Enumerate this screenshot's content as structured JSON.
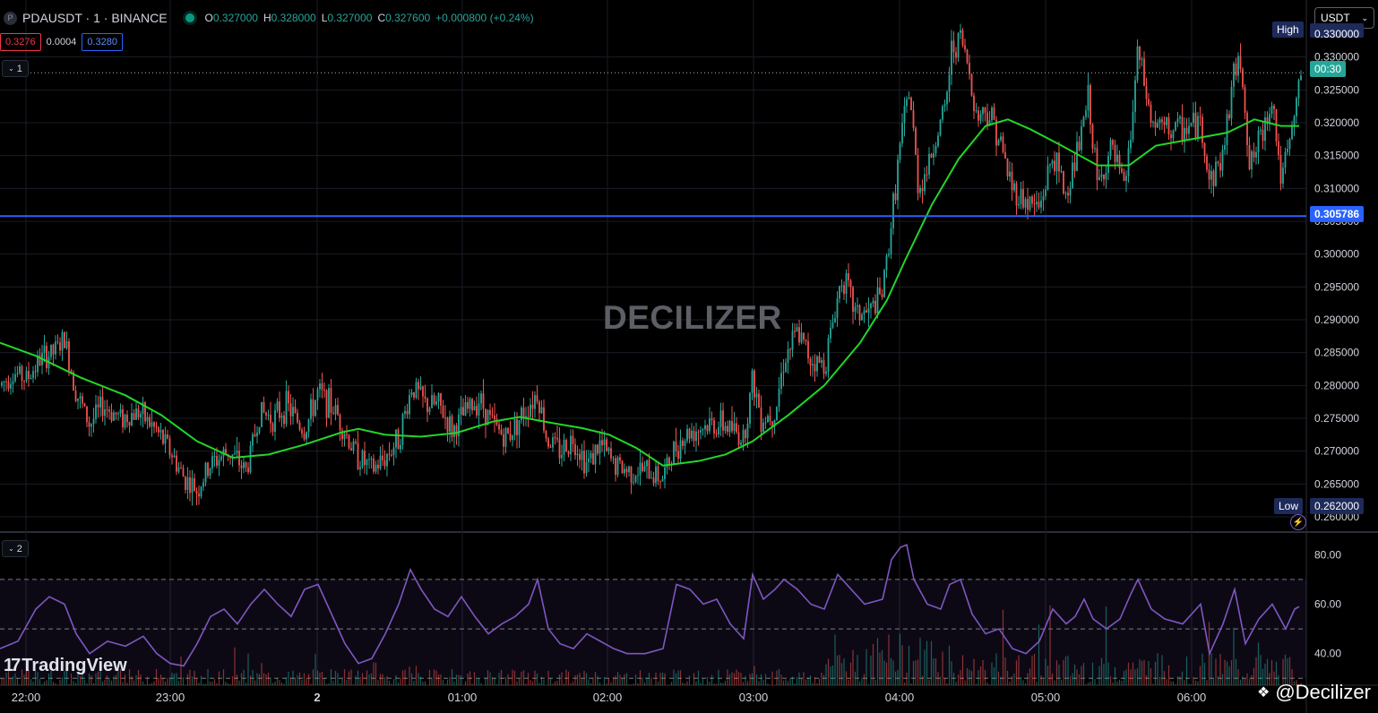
{
  "header": {
    "symbol_logo": "P",
    "symbol_line": "PDAUSDT · 1 · BINANCE",
    "open_label": "O",
    "open": "0.327000",
    "high_label": "H",
    "high": "0.328000",
    "low_label": "L",
    "low": "0.327000",
    "close_label": "C",
    "close": "0.327600",
    "change": "+0.000800 (+0.24%)"
  },
  "bid_ask": {
    "bid": "0.3276",
    "spread": "0.0004",
    "ask": "0.3280"
  },
  "currency_select": "USDT",
  "pane1_tag": "1",
  "pane2_tag": "2",
  "watermark": "DECILIZER",
  "tradingview_logo_text": "TradingView",
  "credit": "@Decilizer",
  "price_tags": {
    "high_label": "High",
    "low_label": "Low",
    "low_value": "0.262000",
    "countdown": "00:30",
    "hline_value": "0.305786",
    "high_cut_value": "0.330000"
  },
  "colors": {
    "up": "#26a69a",
    "down": "#ef5350",
    "ma": "#22d628",
    "rsi": "#7e57c2",
    "hline": "#2962ff",
    "background": "#000000"
  },
  "chart_data": [
    {
      "type": "candlestick",
      "title": "PDAUSDT · 1 · BINANCE",
      "y_ticks": [
        0.26,
        0.265,
        0.27,
        0.275,
        0.28,
        0.285,
        0.29,
        0.295,
        0.3,
        0.305,
        0.31,
        0.315,
        0.32,
        0.325,
        0.33
      ],
      "y_tick_labels": [
        "0.260000",
        "0.265000",
        "0.270000",
        "0.275000",
        "0.280000",
        "0.285000",
        "0.290000",
        "0.295000",
        "0.300000",
        "0.305000",
        "0.310000",
        "0.315000",
        "0.320000",
        "0.325000",
        "0.330000"
      ],
      "x_tick_labels": [
        "22:00",
        "23:00",
        "2",
        "01:00",
        "02:00",
        "03:00",
        "04:00",
        "05:00",
        "06:00"
      ],
      "ylim": [
        0.2585,
        0.3335
      ],
      "high": 0.3325,
      "low": 0.262,
      "last": 0.3276,
      "horizontal_line": 0.305786,
      "price_path": [
        [
          0,
          0.28
        ],
        [
          15,
          0.282
        ],
        [
          30,
          0.281
        ],
        [
          45,
          0.284
        ],
        [
          60,
          0.285
        ],
        [
          72,
          0.287
        ],
        [
          85,
          0.279
        ],
        [
          100,
          0.274
        ],
        [
          115,
          0.277
        ],
        [
          135,
          0.275
        ],
        [
          155,
          0.276
        ],
        [
          175,
          0.273
        ],
        [
          190,
          0.27
        ],
        [
          205,
          0.266
        ],
        [
          220,
          0.264
        ],
        [
          235,
          0.268
        ],
        [
          255,
          0.27
        ],
        [
          275,
          0.267
        ],
        [
          290,
          0.276
        ],
        [
          305,
          0.275
        ],
        [
          320,
          0.277
        ],
        [
          340,
          0.273
        ],
        [
          355,
          0.279
        ],
        [
          375,
          0.276
        ],
        [
          395,
          0.27
        ],
        [
          415,
          0.267
        ],
        [
          430,
          0.269
        ],
        [
          445,
          0.272
        ],
        [
          460,
          0.28
        ],
        [
          475,
          0.277
        ],
        [
          490,
          0.277
        ],
        [
          505,
          0.273
        ],
        [
          520,
          0.276
        ],
        [
          535,
          0.278
        ],
        [
          550,
          0.274
        ],
        [
          565,
          0.272
        ],
        [
          580,
          0.275
        ],
        [
          600,
          0.279
        ],
        [
          610,
          0.272
        ],
        [
          625,
          0.27
        ],
        [
          640,
          0.272
        ],
        [
          655,
          0.268
        ],
        [
          670,
          0.271
        ],
        [
          685,
          0.268
        ],
        [
          700,
          0.267
        ],
        [
          720,
          0.267
        ],
        [
          740,
          0.266
        ],
        [
          755,
          0.271
        ],
        [
          770,
          0.273
        ],
        [
          790,
          0.274
        ],
        [
          810,
          0.274
        ],
        [
          830,
          0.272
        ],
        [
          840,
          0.281
        ],
        [
          850,
          0.275
        ],
        [
          865,
          0.276
        ],
        [
          875,
          0.284
        ],
        [
          890,
          0.288
        ],
        [
          905,
          0.284
        ],
        [
          920,
          0.283
        ],
        [
          930,
          0.29
        ],
        [
          940,
          0.297
        ],
        [
          955,
          0.291
        ],
        [
          970,
          0.291
        ],
        [
          985,
          0.294
        ],
        [
          995,
          0.305
        ],
        [
          1005,
          0.317
        ],
        [
          1015,
          0.325
        ],
        [
          1025,
          0.31
        ],
        [
          1035,
          0.313
        ],
        [
          1045,
          0.318
        ],
        [
          1055,
          0.322
        ],
        [
          1062,
          0.331
        ],
        [
          1072,
          0.333
        ],
        [
          1080,
          0.329
        ],
        [
          1090,
          0.321
        ],
        [
          1100,
          0.322
        ],
        [
          1110,
          0.32
        ],
        [
          1120,
          0.315
        ],
        [
          1130,
          0.31
        ],
        [
          1145,
          0.308
        ],
        [
          1160,
          0.307
        ],
        [
          1175,
          0.315
        ],
        [
          1190,
          0.309
        ],
        [
          1205,
          0.317
        ],
        [
          1215,
          0.324
        ],
        [
          1225,
          0.31
        ],
        [
          1240,
          0.316
        ],
        [
          1255,
          0.31
        ],
        [
          1262,
          0.318
        ],
        [
          1270,
          0.331
        ],
        [
          1285,
          0.32
        ],
        [
          1300,
          0.319
        ],
        [
          1320,
          0.319
        ],
        [
          1340,
          0.32
        ],
        [
          1350,
          0.311
        ],
        [
          1365,
          0.315
        ],
        [
          1375,
          0.326
        ],
        [
          1385,
          0.33
        ],
        [
          1395,
          0.313
        ],
        [
          1410,
          0.319
        ],
        [
          1420,
          0.324
        ],
        [
          1430,
          0.311
        ],
        [
          1440,
          0.317
        ],
        [
          1452,
          0.3276
        ]
      ],
      "moving_average_path": [
        [
          0,
          0.2865
        ],
        [
          40,
          0.2845
        ],
        [
          90,
          0.2812
        ],
        [
          140,
          0.2785
        ],
        [
          180,
          0.2755
        ],
        [
          220,
          0.2715
        ],
        [
          260,
          0.269
        ],
        [
          300,
          0.2695
        ],
        [
          340,
          0.271
        ],
        [
          380,
          0.2728
        ],
        [
          400,
          0.2734
        ],
        [
          430,
          0.2725
        ],
        [
          470,
          0.2722
        ],
        [
          510,
          0.2728
        ],
        [
          550,
          0.2745
        ],
        [
          580,
          0.2752
        ],
        [
          620,
          0.2742
        ],
        [
          650,
          0.2735
        ],
        [
          680,
          0.2725
        ],
        [
          710,
          0.2705
        ],
        [
          740,
          0.2678
        ],
        [
          780,
          0.2685
        ],
        [
          810,
          0.2695
        ],
        [
          840,
          0.2715
        ],
        [
          880,
          0.2755
        ],
        [
          920,
          0.28
        ],
        [
          960,
          0.2865
        ],
        [
          990,
          0.293
        ],
        [
          1010,
          0.299
        ],
        [
          1040,
          0.3075
        ],
        [
          1070,
          0.3145
        ],
        [
          1100,
          0.3195
        ],
        [
          1125,
          0.3205
        ],
        [
          1150,
          0.319
        ],
        [
          1185,
          0.3165
        ],
        [
          1225,
          0.3135
        ],
        [
          1260,
          0.3135
        ],
        [
          1290,
          0.3165
        ],
        [
          1330,
          0.3175
        ],
        [
          1370,
          0.3185
        ],
        [
          1400,
          0.3205
        ],
        [
          1430,
          0.3195
        ],
        [
          1450,
          0.3195
        ]
      ]
    },
    {
      "type": "line",
      "y_tick_labels": [
        "80.00",
        "60.00",
        "40.00"
      ],
      "ylim": [
        29,
        87
      ],
      "band_levels": [
        70,
        30
      ],
      "mid_level": 50,
      "volume_bars": true,
      "rsi_path": [
        [
          0,
          42
        ],
        [
          20,
          45
        ],
        [
          40,
          58
        ],
        [
          55,
          63
        ],
        [
          72,
          60
        ],
        [
          85,
          48
        ],
        [
          100,
          40
        ],
        [
          120,
          45
        ],
        [
          140,
          43
        ],
        [
          160,
          47
        ],
        [
          175,
          40
        ],
        [
          190,
          36
        ],
        [
          205,
          35
        ],
        [
          220,
          44
        ],
        [
          235,
          55
        ],
        [
          250,
          58
        ],
        [
          265,
          52
        ],
        [
          280,
          60
        ],
        [
          295,
          66
        ],
        [
          310,
          60
        ],
        [
          325,
          55
        ],
        [
          340,
          66
        ],
        [
          355,
          68
        ],
        [
          370,
          56
        ],
        [
          385,
          44
        ],
        [
          400,
          36
        ],
        [
          415,
          38
        ],
        [
          430,
          48
        ],
        [
          445,
          60
        ],
        [
          458,
          74
        ],
        [
          470,
          66
        ],
        [
          485,
          58
        ],
        [
          500,
          55
        ],
        [
          515,
          63
        ],
        [
          530,
          55
        ],
        [
          545,
          48
        ],
        [
          560,
          52
        ],
        [
          575,
          55
        ],
        [
          590,
          60
        ],
        [
          600,
          70
        ],
        [
          612,
          50
        ],
        [
          625,
          44
        ],
        [
          640,
          42
        ],
        [
          655,
          48
        ],
        [
          670,
          45
        ],
        [
          685,
          42
        ],
        [
          700,
          40
        ],
        [
          720,
          40
        ],
        [
          740,
          42
        ],
        [
          755,
          68
        ],
        [
          770,
          66
        ],
        [
          785,
          60
        ],
        [
          800,
          62
        ],
        [
          815,
          52
        ],
        [
          830,
          46
        ],
        [
          840,
          72
        ],
        [
          852,
          62
        ],
        [
          865,
          66
        ],
        [
          875,
          70
        ],
        [
          890,
          66
        ],
        [
          905,
          60
        ],
        [
          920,
          58
        ],
        [
          935,
          72
        ],
        [
          950,
          66
        ],
        [
          965,
          60
        ],
        [
          985,
          62
        ],
        [
          995,
          78
        ],
        [
          1005,
          83
        ],
        [
          1012,
          84
        ],
        [
          1020,
          70
        ],
        [
          1035,
          60
        ],
        [
          1050,
          58
        ],
        [
          1060,
          68
        ],
        [
          1072,
          70
        ],
        [
          1085,
          56
        ],
        [
          1100,
          48
        ],
        [
          1115,
          50
        ],
        [
          1130,
          42
        ],
        [
          1145,
          40
        ],
        [
          1160,
          45
        ],
        [
          1175,
          58
        ],
        [
          1190,
          52
        ],
        [
          1200,
          55
        ],
        [
          1210,
          62
        ],
        [
          1220,
          54
        ],
        [
          1235,
          50
        ],
        [
          1250,
          54
        ],
        [
          1262,
          64
        ],
        [
          1270,
          70
        ],
        [
          1285,
          58
        ],
        [
          1300,
          54
        ],
        [
          1320,
          52
        ],
        [
          1340,
          60
        ],
        [
          1350,
          40
        ],
        [
          1365,
          52
        ],
        [
          1378,
          66
        ],
        [
          1390,
          44
        ],
        [
          1405,
          54
        ],
        [
          1420,
          60
        ],
        [
          1435,
          50
        ],
        [
          1445,
          58
        ],
        [
          1450,
          59
        ]
      ]
    }
  ]
}
